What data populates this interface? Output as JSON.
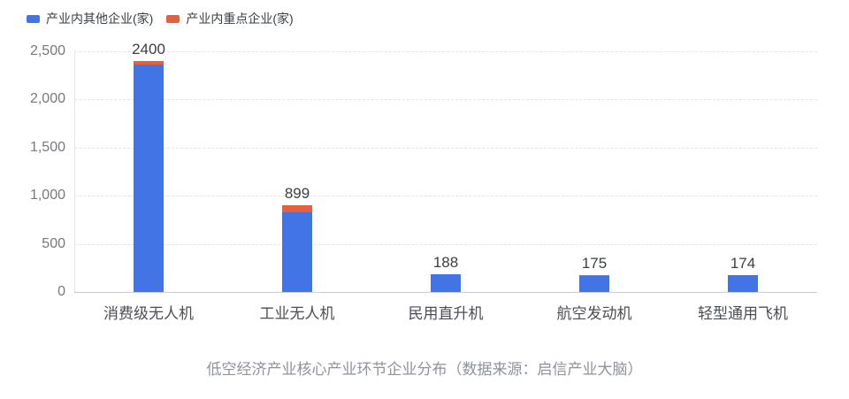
{
  "legend": {
    "items": [
      {
        "label": "产业内其他企业(家)",
        "color": "#4274E5"
      },
      {
        "label": "产业内重点企业(家)",
        "color": "#E4603F"
      }
    ]
  },
  "caption": "低空经济产业核心产业环节企业分布（数据来源：启信产业大脑）",
  "chart_data": {
    "type": "bar",
    "stacked": true,
    "title": "低空经济产业核心产业环节企业分布（数据来源：启信产业大脑）",
    "categories": [
      "消费级无人机",
      "工业无人机",
      "民用直升机",
      "航空发动机",
      "轻型通用飞机"
    ],
    "series": [
      {
        "name": "产业内其他企业(家)",
        "color": "#4274E5",
        "values": [
          2365,
          827,
          188,
          167,
          174
        ]
      },
      {
        "name": "产业内重点企业(家)",
        "color": "#E4603F",
        "values": [
          35,
          72,
          0,
          8,
          0
        ]
      }
    ],
    "totals": [
      2400,
      899,
      188,
      175,
      174
    ],
    "total_labels": [
      "2400",
      "899",
      "188",
      "175",
      "174"
    ],
    "xlabel": "",
    "ylabel": "",
    "ylim": [
      0,
      2500
    ],
    "yticks": [
      0,
      500,
      1000,
      1500,
      2000,
      2500
    ],
    "ytick_labels": [
      "0",
      "500",
      "1,000",
      "1,500",
      "2,000",
      "2,500"
    ],
    "grid": true,
    "legend_position": "top-left"
  }
}
